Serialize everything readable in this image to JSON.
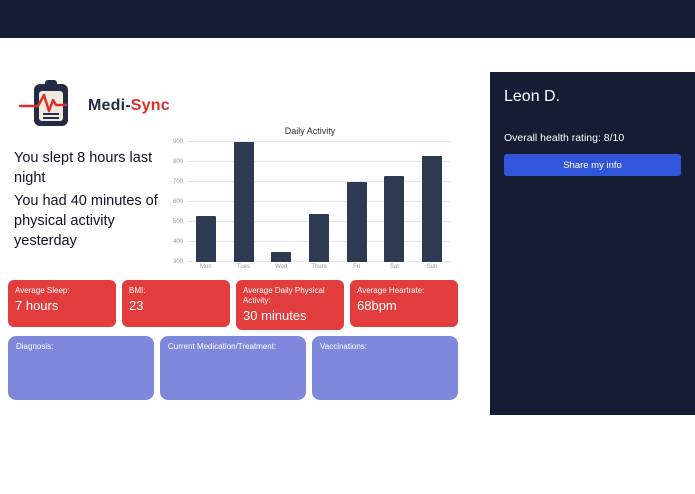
{
  "brand": {
    "name_primary": "Medi-",
    "name_accent": "Sync"
  },
  "summary": {
    "line1": "You slept 8 hours last night",
    "line2": "You had 40 minutes of physical activity yesterday"
  },
  "chart_data": {
    "type": "bar",
    "title": "Daily Activity",
    "categories": [
      "Mon",
      "Tues",
      "Wed",
      "Thurs",
      "Fri",
      "Sat",
      "Sun"
    ],
    "values": [
      530,
      900,
      350,
      540,
      700,
      730,
      830
    ],
    "ylim": [
      300,
      900
    ],
    "yticks": [
      300,
      400,
      500,
      600,
      700,
      800,
      900
    ],
    "grid": true,
    "legend": "none",
    "bar_color": "#2e3a52"
  },
  "stats": {
    "cards": [
      {
        "label": "Average Sleep:",
        "value": "7 hours"
      },
      {
        "label": "BMI:",
        "value": "23"
      },
      {
        "label": "Average Daily Physical Activity:",
        "value": "30 minutes"
      },
      {
        "label": "Average Heartrate:",
        "value": "68bpm"
      }
    ]
  },
  "records": {
    "cards": [
      {
        "label": "Diagnosis:"
      },
      {
        "label": "Current Medication/Treatment:"
      },
      {
        "label": "Vaccinations:"
      }
    ]
  },
  "profile": {
    "name": "Leon D.",
    "rating": "Overall health rating: 8/10",
    "share_button": "Share my info"
  },
  "colors": {
    "navy": "#151c33",
    "stat_red": "#e23c3c",
    "record_purple": "#7d88da",
    "button_blue": "#3156d9",
    "bar_navy": "#2e3a52",
    "logo_red": "#d93025"
  }
}
